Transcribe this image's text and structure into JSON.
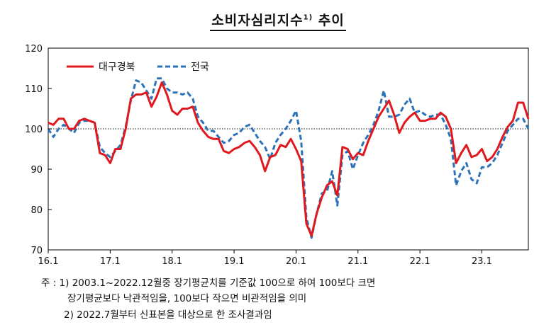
{
  "title": {
    "text": "소비자심리지수",
    "sup": "1)",
    "suffix": " 추이"
  },
  "notes": {
    "line1": "주 : 1) 2003.1~2022.12월중 장기평균치를 기준값 100으로 하여 100보다 크면",
    "line2": "장기평균보다 낙관적임을, 100보다 작으면 비관적임을 의미",
    "line3": "2) 2022.7월부터 신표본을 대상으로 한 조사결과임"
  },
  "colors": {
    "daegu": "#e0191e",
    "national": "#2b73b8",
    "reference": "#444444",
    "axis": "#000000"
  },
  "chart_data": {
    "type": "line",
    "title": "소비자심리지수 추이",
    "xlabel": "",
    "ylabel": "",
    "ylim": [
      70,
      120
    ],
    "yticks": [
      70,
      80,
      90,
      100,
      110,
      120
    ],
    "xlim": [
      "2016-01",
      "2023-10"
    ],
    "xticks": [
      {
        "label": "16.1",
        "date": "2016-01"
      },
      {
        "label": "17.1",
        "date": "2017-01"
      },
      {
        "label": "18.1",
        "date": "2018-01"
      },
      {
        "label": "19.1",
        "date": "2019-01"
      },
      {
        "label": "20.1",
        "date": "2020-01"
      },
      {
        "label": "21.1",
        "date": "2021-01"
      },
      {
        "label": "22.1",
        "date": "2022-01"
      },
      {
        "label": "23.1",
        "date": "2023-01"
      }
    ],
    "reference_line": 100,
    "legend": "top-left",
    "grid": false,
    "x": [
      "2016-01",
      "2016-02",
      "2016-03",
      "2016-04",
      "2016-05",
      "2016-06",
      "2016-07",
      "2016-08",
      "2016-09",
      "2016-10",
      "2016-11",
      "2016-12",
      "2017-01",
      "2017-02",
      "2017-03",
      "2017-04",
      "2017-05",
      "2017-06",
      "2017-07",
      "2017-08",
      "2017-09",
      "2017-10",
      "2017-11",
      "2017-12",
      "2018-01",
      "2018-02",
      "2018-03",
      "2018-04",
      "2018-05",
      "2018-06",
      "2018-07",
      "2018-08",
      "2018-09",
      "2018-10",
      "2018-11",
      "2018-12",
      "2019-01",
      "2019-02",
      "2019-03",
      "2019-04",
      "2019-05",
      "2019-06",
      "2019-07",
      "2019-08",
      "2019-09",
      "2019-10",
      "2019-11",
      "2019-12",
      "2020-01",
      "2020-02",
      "2020-03",
      "2020-04",
      "2020-05",
      "2020-06",
      "2020-07",
      "2020-08",
      "2020-09",
      "2020-10",
      "2020-11",
      "2020-12",
      "2021-01",
      "2021-02",
      "2021-03",
      "2021-04",
      "2021-05",
      "2021-06",
      "2021-07",
      "2021-08",
      "2021-09",
      "2021-10",
      "2021-11",
      "2021-12",
      "2022-01",
      "2022-02",
      "2022-03",
      "2022-04",
      "2022-05",
      "2022-06",
      "2022-07",
      "2022-08",
      "2022-09",
      "2022-10",
      "2022-11",
      "2022-12",
      "2023-01",
      "2023-02",
      "2023-03",
      "2023-04",
      "2023-05",
      "2023-06",
      "2023-07",
      "2023-08",
      "2023-09",
      "2023-10"
    ],
    "series": [
      {
        "name": "대구경북",
        "style": "solid",
        "values": [
          101.5,
          101,
          102.5,
          102.5,
          100,
          100,
          102,
          102.5,
          102,
          101.5,
          94,
          93.5,
          91.5,
          95,
          95,
          100,
          107.5,
          108.5,
          108.5,
          109,
          105.5,
          108,
          111.5,
          108.5,
          104.5,
          103.5,
          105,
          105,
          105.5,
          101.5,
          99.5,
          98,
          97.5,
          97.5,
          94.5,
          94,
          95,
          95.5,
          96.5,
          97,
          95.5,
          93.5,
          89.5,
          93,
          93.5,
          96,
          95.5,
          97.5,
          95,
          92,
          76.5,
          73.5,
          79,
          83,
          86,
          87,
          83.5,
          95.5,
          95,
          92.5,
          94,
          93.5,
          97,
          100,
          103,
          105,
          107,
          103.5,
          99,
          101.5,
          103,
          104,
          102,
          102,
          102.5,
          102.5,
          104,
          103,
          100,
          91.5,
          94,
          96,
          93,
          93.5,
          95,
          92,
          93,
          95,
          98,
          100.5,
          102,
          106.5,
          106.5,
          102.5
        ]
      },
      {
        "name": "전국",
        "style": "dashed",
        "values": [
          100,
          98,
          100,
          101,
          100,
          99,
          101.5,
          102,
          102,
          101.5,
          95.5,
          94,
          93,
          94.5,
          96,
          100.5,
          107,
          112,
          111.5,
          109.5,
          107.5,
          112.5,
          112.5,
          110,
          109,
          109,
          108.5,
          109,
          107.5,
          103,
          101.5,
          99.5,
          99.5,
          98,
          96.5,
          97,
          98.5,
          99,
          100.5,
          101,
          99,
          97,
          95.5,
          92.5,
          96.5,
          98.5,
          100,
          102,
          104.5,
          97,
          78,
          73,
          79,
          84,
          84.5,
          89.5,
          81,
          93.5,
          94.5,
          90,
          93.5,
          96.5,
          98.5,
          101,
          104.5,
          109.5,
          103,
          103,
          103.5,
          106,
          107.5,
          104,
          104.5,
          103.5,
          103,
          103.5,
          103.5,
          101,
          97.5,
          86,
          89.5,
          91.5,
          87.5,
          86.5,
          90.5,
          90.5,
          91.5,
          93.5,
          96.5,
          99.5,
          101,
          102.5,
          102.5,
          100
        ]
      }
    ]
  }
}
